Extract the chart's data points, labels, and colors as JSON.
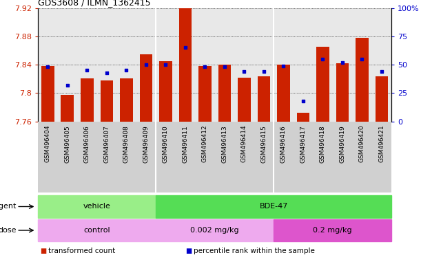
{
  "title": "GDS3608 / ILMN_1362415",
  "samples": [
    "GSM496404",
    "GSM496405",
    "GSM496406",
    "GSM496407",
    "GSM496408",
    "GSM496409",
    "GSM496410",
    "GSM496411",
    "GSM496412",
    "GSM496413",
    "GSM496414",
    "GSM496415",
    "GSM496416",
    "GSM496417",
    "GSM496418",
    "GSM496419",
    "GSM496420",
    "GSM496421"
  ],
  "bar_values": [
    7.838,
    7.797,
    7.821,
    7.818,
    7.821,
    7.855,
    7.845,
    7.921,
    7.838,
    7.84,
    7.822,
    7.824,
    7.84,
    7.772,
    7.865,
    7.842,
    7.878,
    7.824
  ],
  "percentile_values": [
    48,
    32,
    45,
    43,
    45,
    50,
    50,
    65,
    48,
    48,
    44,
    44,
    49,
    18,
    55,
    52,
    55,
    44
  ],
  "ylim_left": [
    7.76,
    7.92
  ],
  "ylim_right": [
    0,
    100
  ],
  "yticks_left": [
    7.76,
    7.8,
    7.84,
    7.88,
    7.92
  ],
  "yticks_right": [
    0,
    25,
    50,
    75,
    100
  ],
  "bar_color": "#cc2200",
  "dot_color": "#0000cc",
  "bar_bottom": 7.76,
  "agent_groups": [
    {
      "label": "vehicle",
      "start": 0,
      "end": 6,
      "color": "#99ee88"
    },
    {
      "label": "BDE-47",
      "start": 6,
      "end": 18,
      "color": "#55dd55"
    }
  ],
  "dose_groups": [
    {
      "label": "control",
      "start": 0,
      "end": 6,
      "color": "#eeaaee"
    },
    {
      "label": "0.002 mg/kg",
      "start": 6,
      "end": 12,
      "color": "#eeaaee"
    },
    {
      "label": "0.2 mg/kg",
      "start": 12,
      "end": 18,
      "color": "#dd55cc"
    }
  ],
  "legend_items": [
    {
      "label": "transformed count",
      "color": "#cc2200"
    },
    {
      "label": "percentile rank within the sample",
      "color": "#0000cc"
    }
  ],
  "grid_color": "#000000",
  "bg_color": "#ffffff",
  "plot_bg_color": "#e8e8e8",
  "tick_area_bg": "#d0d0d0",
  "separator_color": "#ffffff"
}
